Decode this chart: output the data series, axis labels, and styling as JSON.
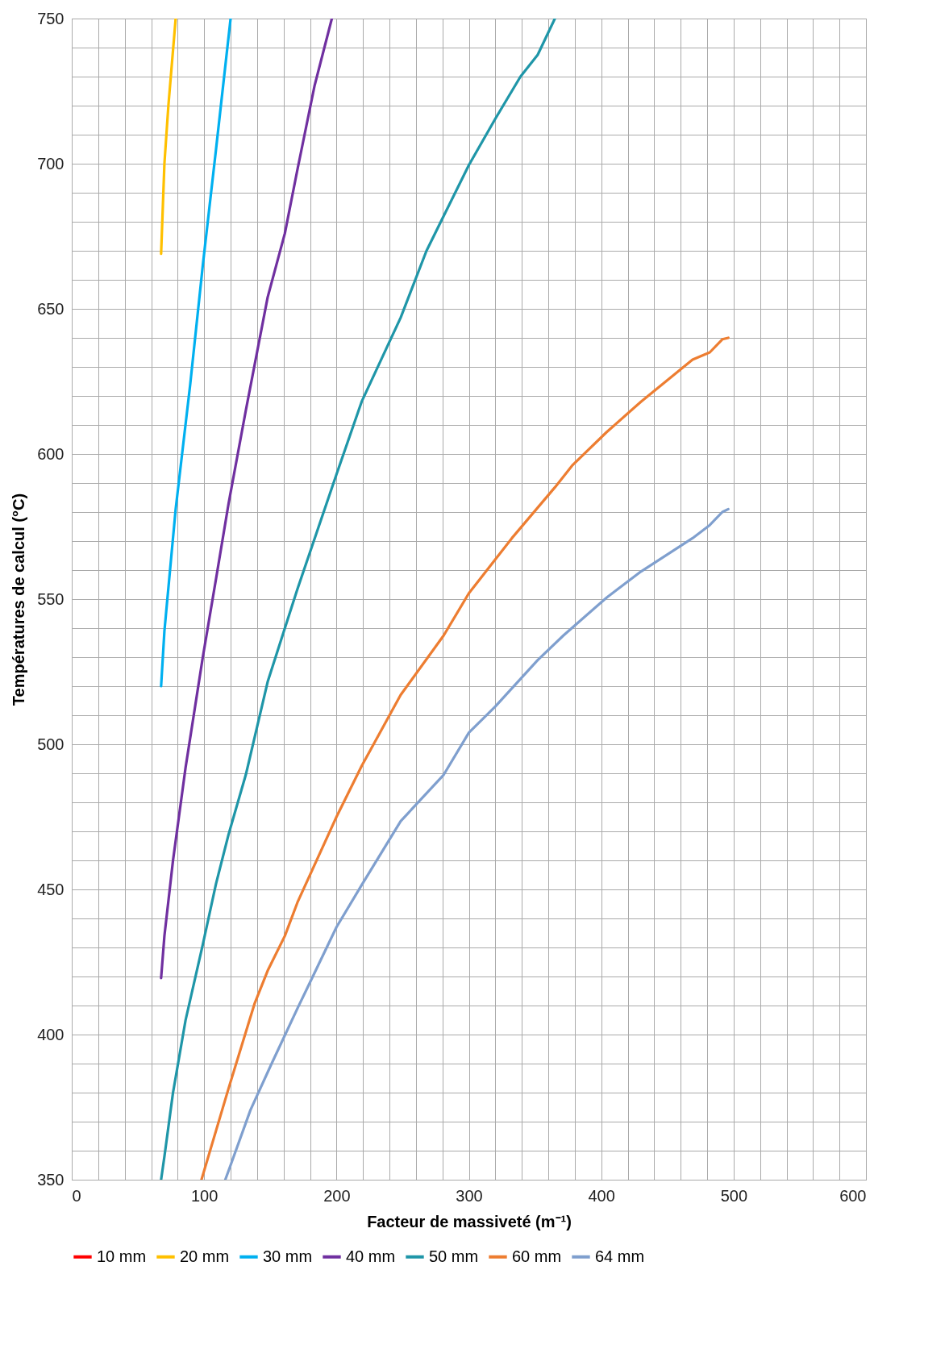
{
  "chart_data": {
    "type": "line",
    "xlabel": "Facteur de massiveté (m⁻¹)",
    "ylabel": "Températures de calcul (°C)",
    "xlim": [
      0,
      600
    ],
    "ylim": [
      350,
      750
    ],
    "xticks": [
      0,
      {
        "value": 20,
        "label": null
      },
      {
        "value": 40,
        "label": null
      },
      {
        "value": 60,
        "label": null
      },
      {
        "value": 80,
        "label": null
      },
      100,
      {
        "value": 120,
        "label": null
      },
      {
        "value": 140,
        "label": null
      },
      {
        "value": 160,
        "label": null
      },
      {
        "value": 180,
        "label": null
      },
      200,
      {
        "value": 220,
        "label": null
      },
      {
        "value": 240,
        "label": null
      },
      {
        "value": 260,
        "label": null
      },
      {
        "value": 280,
        "label": null
      },
      300,
      {
        "value": 320,
        "label": null
      },
      {
        "value": 340,
        "label": null
      },
      {
        "value": 360,
        "label": null
      },
      {
        "value": 380,
        "label": null
      },
      400,
      {
        "value": 420,
        "label": null
      },
      {
        "value": 440,
        "label": null
      },
      {
        "value": 460,
        "label": null
      },
      {
        "value": 480,
        "label": null
      },
      500,
      {
        "value": 520,
        "label": null
      },
      {
        "value": 540,
        "label": null
      },
      {
        "value": 560,
        "label": null
      },
      {
        "value": 580,
        "label": null
      },
      600
    ],
    "yticks": [
      350,
      {
        "value": 360,
        "label": null
      },
      {
        "value": 370,
        "label": null
      },
      {
        "value": 380,
        "label": null
      },
      {
        "value": 390,
        "label": null
      },
      400,
      {
        "value": 410,
        "label": null
      },
      {
        "value": 420,
        "label": null
      },
      {
        "value": 430,
        "label": null
      },
      {
        "value": 440,
        "label": null
      },
      450,
      {
        "value": 460,
        "label": null
      },
      {
        "value": 470,
        "label": null
      },
      {
        "value": 480,
        "label": null
      },
      {
        "value": 490,
        "label": null
      },
      500,
      {
        "value": 510,
        "label": null
      },
      {
        "value": 520,
        "label": null
      },
      {
        "value": 530,
        "label": null
      },
      {
        "value": 540,
        "label": null
      },
      550,
      {
        "value": 560,
        "label": null
      },
      {
        "value": 570,
        "label": null
      },
      {
        "value": 580,
        "label": null
      },
      {
        "value": 590,
        "label": null
      },
      600,
      {
        "value": 610,
        "label": null
      },
      {
        "value": 620,
        "label": null
      },
      {
        "value": 630,
        "label": null
      },
      {
        "value": 640,
        "label": null
      },
      650,
      {
        "value": 660,
        "label": null
      },
      {
        "value": 670,
        "label": null
      },
      {
        "value": 680,
        "label": null
      },
      {
        "value": 690,
        "label": null
      },
      700,
      {
        "value": 710,
        "label": null
      },
      {
        "value": 720,
        "label": null
      },
      {
        "value": 730,
        "label": null
      },
      {
        "value": 740,
        "label": null
      },
      750
    ],
    "grid": true,
    "legend": "bottom",
    "marker": "none",
    "line_style": "solid",
    "series": [
      {
        "name": "10 mm",
        "color": "#ff0000"
      },
      {
        "name": "20 mm",
        "color": "#ffc000",
        "x": [
          67.5,
          70,
          73,
          78.5
        ],
        "values": [
          669,
          700,
          720,
          750
        ]
      },
      {
        "name": "30 mm",
        "color": "#00b0f0",
        "x": [
          67.5,
          70,
          78.5,
          89.5,
          99,
          109,
          120
        ],
        "values": [
          520,
          539,
          581,
          624,
          665,
          705,
          750
        ]
      },
      {
        "name": "40 mm",
        "color": "#7030a0",
        "x": [
          67.5,
          70,
          76.5,
          86,
          99,
          109,
          118.5,
          131.5,
          148,
          161,
          170.5,
          183.5,
          196.5
        ],
        "values": [
          419.5,
          434,
          460,
          492,
          530,
          557,
          583,
          615,
          654,
          676,
          698,
          727,
          750
        ]
      },
      {
        "name": "50 mm",
        "color": "#1f96a8",
        "x": [
          67.5,
          70,
          76.5,
          86,
          99,
          109,
          118.5,
          131.5,
          148,
          170.5,
          200,
          219,
          248.5,
          268,
          281,
          300,
          320,
          339,
          352,
          365
        ],
        "values": [
          350,
          358,
          380,
          405,
          431,
          452,
          469,
          489.5,
          521.5,
          553.5,
          593,
          618,
          647,
          670,
          682,
          699.5,
          715.5,
          730,
          737.5,
          750
        ]
      },
      {
        "name": "60 mm",
        "color": "#ed7d31",
        "x": [
          98,
          118.5,
          138,
          148,
          161,
          170.5,
          200,
          219,
          248.5,
          281,
          300,
          332.5,
          365,
          378,
          404,
          430,
          469,
          482,
          491.5,
          496
        ],
        "values": [
          350,
          381.5,
          410.5,
          422,
          434,
          445.5,
          475,
          492.5,
          517,
          537.5,
          552,
          571,
          588.5,
          596,
          607.5,
          618,
          632.5,
          635,
          639.5,
          640
        ]
      },
      {
        "name": "64 mm",
        "color": "#7f9fce",
        "x": [
          116,
          120,
          135,
          151,
          170.5,
          180,
          200,
          219,
          248.5,
          281,
          300,
          320,
          352,
          371.5,
          404,
          430,
          469,
          482,
          491.5,
          496
        ],
        "values": [
          350,
          355,
          374,
          390,
          409,
          418,
          437,
          451.5,
          473.5,
          489.5,
          504,
          513,
          529,
          537.5,
          550.5,
          559.5,
          571,
          575.5,
          580,
          581
        ]
      }
    ]
  }
}
